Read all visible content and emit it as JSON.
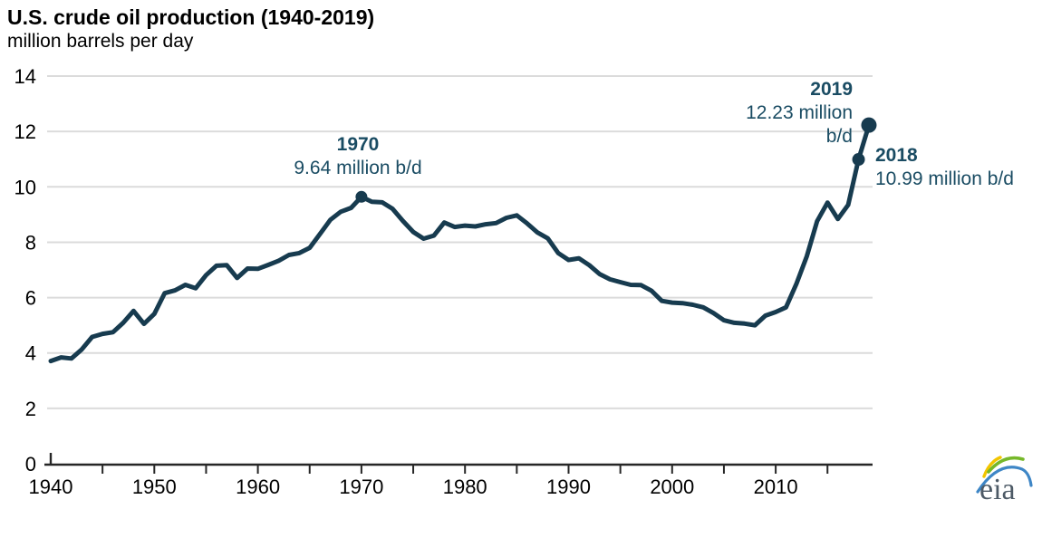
{
  "header": {
    "title": "U.S. crude oil production (1940-2019)",
    "subtitle": "million barrels per day"
  },
  "chart_data": {
    "type": "line",
    "title": "U.S. crude oil production (1940-2019)",
    "ylabel": "million barrels per day",
    "xlabel": "",
    "xlim": [
      1940,
      2019
    ],
    "ylim": [
      0,
      14
    ],
    "grid": "horizontal-only",
    "legend": "none",
    "line_color": "#173B4F",
    "grid_color": "#DBDBDB",
    "axis_color": "#262626",
    "x": [
      1940,
      1941,
      1942,
      1943,
      1944,
      1945,
      1946,
      1947,
      1948,
      1949,
      1950,
      1951,
      1952,
      1953,
      1954,
      1955,
      1956,
      1957,
      1958,
      1959,
      1960,
      1961,
      1962,
      1963,
      1964,
      1965,
      1966,
      1967,
      1968,
      1969,
      1970,
      1971,
      1972,
      1973,
      1974,
      1975,
      1976,
      1977,
      1978,
      1979,
      1980,
      1981,
      1982,
      1983,
      1984,
      1985,
      1986,
      1987,
      1988,
      1989,
      1990,
      1991,
      1992,
      1993,
      1994,
      1995,
      1996,
      1997,
      1998,
      1999,
      2000,
      2001,
      2002,
      2003,
      2004,
      2005,
      2006,
      2007,
      2008,
      2009,
      2010,
      2011,
      2012,
      2013,
      2014,
      2015,
      2016,
      2017,
      2018,
      2019
    ],
    "series": [
      {
        "name": "U.S. crude oil production (million barrels per day)",
        "values": [
          3.71,
          3.84,
          3.8,
          4.13,
          4.58,
          4.69,
          4.75,
          5.09,
          5.52,
          5.05,
          5.41,
          6.16,
          6.26,
          6.46,
          6.34,
          6.81,
          7.15,
          7.17,
          6.71,
          7.05,
          7.04,
          7.18,
          7.33,
          7.54,
          7.61,
          7.8,
          8.3,
          8.81,
          9.1,
          9.24,
          9.64,
          9.46,
          9.44,
          9.21,
          8.77,
          8.37,
          8.13,
          8.24,
          8.71,
          8.55,
          8.6,
          8.57,
          8.65,
          8.69,
          8.88,
          8.97,
          8.68,
          8.35,
          8.14,
          7.61,
          7.36,
          7.42,
          7.17,
          6.85,
          6.66,
          6.56,
          6.46,
          6.45,
          6.25,
          5.88,
          5.82,
          5.8,
          5.74,
          5.65,
          5.44,
          5.18,
          5.09,
          5.06,
          5.0,
          5.35,
          5.48,
          5.65,
          6.5,
          7.49,
          8.76,
          9.43,
          8.84,
          9.35,
          10.99,
          12.23
        ]
      }
    ],
    "y_ticks": [
      0,
      2,
      4,
      6,
      8,
      10,
      12,
      14
    ],
    "x_tick_labels": [
      1940,
      1950,
      1960,
      1970,
      1980,
      1990,
      2000,
      2010
    ],
    "x_minor_ticks": [
      1945,
      1950,
      1955,
      1960,
      1965,
      1970,
      1975,
      1980,
      1985,
      1990,
      1995,
      2000,
      2005,
      2010,
      2015
    ],
    "markers": [
      {
        "year": 1970,
        "value": 9.64,
        "radius": 6.5
      },
      {
        "year": 2018,
        "value": 10.99,
        "radius": 7
      },
      {
        "year": 2019,
        "value": 12.23,
        "radius": 8.5
      }
    ]
  },
  "annotations": {
    "y1970": {
      "year": "1970",
      "value": "9.64 million b/d"
    },
    "y2019": {
      "year": "2019",
      "line1": "12.23 million",
      "line2": "b/d"
    },
    "y2018": {
      "year": "2018",
      "value": "10.99 million b/d"
    }
  },
  "logo": {
    "text": "eia"
  }
}
